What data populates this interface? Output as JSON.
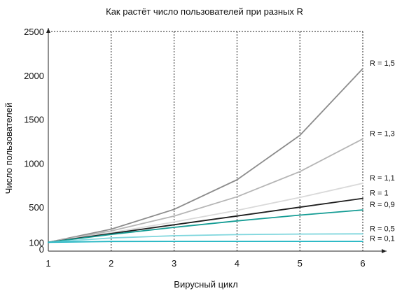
{
  "chart_data": {
    "type": "line",
    "title": "Как растёт число пользователей при разных R",
    "xlabel": "Вирусный цикл",
    "ylabel": "Число пользователей",
    "x": [
      1,
      2,
      3,
      4,
      5,
      6
    ],
    "xlim": [
      1,
      6
    ],
    "ylim": [
      0,
      2500
    ],
    "x_ticks": [
      "1",
      "2",
      "3",
      "4",
      "5",
      "6"
    ],
    "y_ticks": [
      {
        "value": 0,
        "label": "0"
      },
      {
        "value": 100,
        "label": "100"
      },
      {
        "value": 500,
        "label": "500"
      },
      {
        "value": 1000,
        "label": "1000"
      },
      {
        "value": 1500,
        "label": "1500"
      },
      {
        "value": 2000,
        "label": "2000"
      },
      {
        "value": 2500,
        "label": "2500"
      }
    ],
    "grid": "dotted",
    "legend": "end-of-line labels",
    "series": [
      {
        "name": "R = 1,5",
        "color": "#8c8c8c",
        "values": [
          100,
          250,
          475,
          812,
          1318,
          2077
        ]
      },
      {
        "name": "R = 1,3",
        "color": "#b5b5b5",
        "values": [
          100,
          230,
          399,
          619,
          905,
          1277
        ]
      },
      {
        "name": "R = 1,1",
        "color": "#d9d9d9",
        "values": [
          100,
          210,
          331,
          464,
          611,
          772
        ]
      },
      {
        "name": "R = 1",
        "color": "#1e1e1e",
        "values": [
          100,
          200,
          300,
          400,
          500,
          600
        ]
      },
      {
        "name": "R = 0,9",
        "color": "#149c94",
        "values": [
          100,
          190,
          271,
          344,
          410,
          469
        ]
      },
      {
        "name": "R = 0,5",
        "color": "#7fd6dd",
        "values": [
          100,
          150,
          175,
          188,
          194,
          197
        ]
      },
      {
        "name": "R = 0,1",
        "color": "#22b5c2",
        "values": [
          100,
          110,
          111,
          111,
          111,
          111
        ]
      }
    ]
  }
}
